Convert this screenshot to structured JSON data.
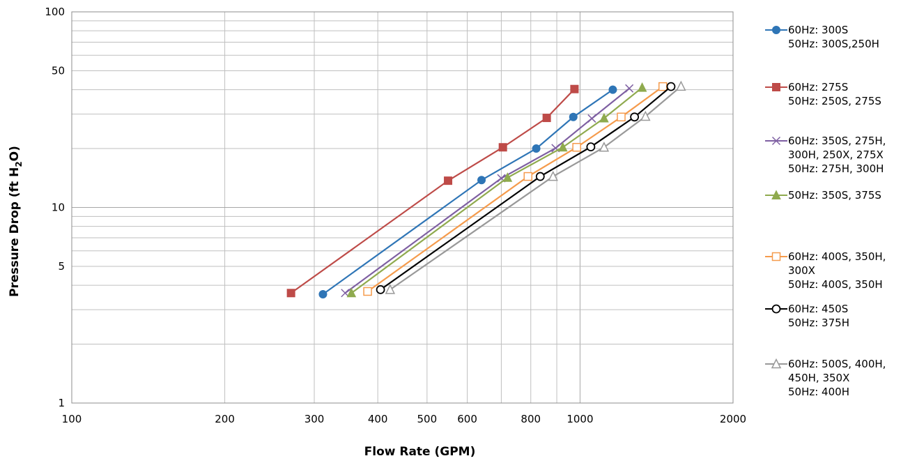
{
  "chart_data": {
    "type": "line",
    "x_scale": "log",
    "y_scale": "log",
    "xlim": [
      100,
      2000
    ],
    "ylim": [
      1,
      100
    ],
    "xlabel": "Flow Rate  (GPM)",
    "ylabel_parts": [
      "Pressure Drop (ft H",
      "2",
      "O)"
    ],
    "x_ticks": [
      {
        "value": 100,
        "label": "100"
      },
      {
        "value": 200,
        "label": "200"
      },
      {
        "value": 300,
        "label": "300"
      },
      {
        "value": 400,
        "label": "400"
      },
      {
        "value": 500,
        "label": "500"
      },
      {
        "value": 600,
        "label": "600"
      },
      {
        "value": 800,
        "label": "800"
      },
      {
        "value": 1000,
        "label": "1000"
      },
      {
        "value": 2000,
        "label": "2000"
      }
    ],
    "y_ticks": [
      {
        "value": 1,
        "label": "1"
      },
      {
        "value": 5,
        "label": "5"
      },
      {
        "value": 10,
        "label": "10"
      },
      {
        "value": 50,
        "label": "50"
      },
      {
        "value": 100,
        "label": "100"
      }
    ],
    "x_minor_grid": [
      300,
      400,
      500,
      600,
      700,
      800,
      900
    ],
    "y_minor_grid": [
      2,
      3,
      4,
      5,
      6,
      7,
      8,
      9,
      20,
      30,
      40,
      50,
      60,
      70,
      80,
      90
    ],
    "grid": true,
    "legend_position": "right",
    "series": [
      {
        "legend": [
          "60Hz: 300S",
          "50Hz: 300S,250H"
        ],
        "color": "#2E75B6",
        "marker": "circle",
        "points": [
          [
            312,
            3.6
          ],
          [
            640,
            13.8
          ],
          [
            820,
            20
          ],
          [
            970,
            29
          ],
          [
            1160,
            40
          ]
        ]
      },
      {
        "legend": [
          "60Hz: 275S",
          "50Hz:  250S, 275S"
        ],
        "color": "#BE4B48",
        "marker": "square",
        "points": [
          [
            270,
            3.65
          ],
          [
            550,
            13.7
          ],
          [
            705,
            20.3
          ],
          [
            860,
            28.7
          ],
          [
            975,
            40.3
          ]
        ]
      },
      {
        "legend": [
          "60Hz: 350S, 275H,",
          "300H, 250X, 275X",
          "50Hz: 275H, 300H"
        ],
        "color": "#7E5FA2",
        "marker": "x",
        "points": [
          [
            345,
            3.65
          ],
          [
            700,
            14.1
          ],
          [
            895,
            20.1
          ],
          [
            1055,
            28.5
          ],
          [
            1250,
            40.6
          ]
        ]
      },
      {
        "legend": [
          "50Hz: 350S, 375S"
        ],
        "color": "#8FAA4E",
        "marker": "triangle",
        "points": [
          [
            355,
            3.65
          ],
          [
            720,
            14.2
          ],
          [
            925,
            20.3
          ],
          [
            1115,
            28.6
          ],
          [
            1325,
            41.0
          ]
        ]
      },
      {
        "legend": [
          "60Hz: 400S, 350H,",
          "300X",
          "50Hz: 400S, 350H"
        ],
        "color": "#F59B4C",
        "marker": "open-square",
        "points": [
          [
            382,
            3.72
          ],
          [
            790,
            14.4
          ],
          [
            985,
            20.3
          ],
          [
            1205,
            29.0
          ],
          [
            1455,
            41.5
          ]
        ]
      },
      {
        "legend": [
          "60Hz: 450S",
          "50Hz: 375H"
        ],
        "color": "#000000",
        "marker": "open-circle",
        "points": [
          [
            405,
            3.8
          ],
          [
            835,
            14.4
          ],
          [
            1050,
            20.4
          ],
          [
            1280,
            29.0
          ],
          [
            1510,
            41.5
          ]
        ]
      },
      {
        "legend": [
          "60Hz: 500S, 400H,",
          "450H, 350X",
          "50Hz: 400H"
        ],
        "color": "#999999",
        "marker": "open-triangle",
        "points": [
          [
            423,
            3.8
          ],
          [
            885,
            14.4
          ],
          [
            1115,
            20.3
          ],
          [
            1345,
            29.2
          ],
          [
            1580,
            41.6
          ]
        ]
      }
    ]
  }
}
